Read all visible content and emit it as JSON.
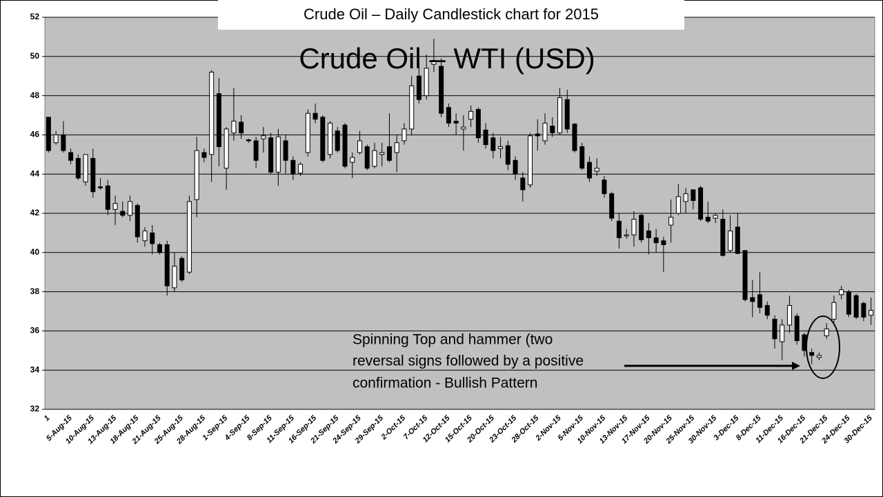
{
  "chart_data": {
    "type": "candlestick",
    "title": "Crude Oil – Daily Candlestick chart for 2015",
    "subtitle": "Crude Oil – WTI (USD)",
    "annotation": [
      "Spinning Top and hammer (two",
      "reversal signs followed by a positive",
      "confirmation -  Bullish Pattern"
    ],
    "categories": [
      "1",
      null,
      null,
      "5-Aug-15",
      null,
      null,
      "10-Aug-15",
      null,
      null,
      "13-Aug-15",
      null,
      null,
      "18-Aug-15",
      null,
      null,
      "21-Aug-15",
      null,
      null,
      "25-Aug-15",
      null,
      null,
      "28-Aug-15",
      null,
      null,
      "1-Sep-15",
      null,
      null,
      "4-Sep-15",
      null,
      null,
      "8-Sep-15",
      null,
      null,
      "11-Sep-15",
      null,
      null,
      "16-Sep-15",
      null,
      null,
      "21-Sep-15",
      null,
      null,
      "24-Sep-15",
      null,
      null,
      "29-Sep-15",
      null,
      null,
      "2-Oct-15",
      null,
      null,
      "7-Oct-15",
      null,
      null,
      "12-Oct-15",
      null,
      null,
      "15-Oct-15",
      null,
      null,
      "20-Oct-15",
      null,
      null,
      "23-Oct-15",
      null,
      null,
      "28-Oct-15",
      null,
      null,
      "2-Nov-15",
      null,
      null,
      "5-Nov-15",
      null,
      null,
      "10-Nov-15",
      null,
      null,
      "13-Nov-15",
      null,
      null,
      "17-Nov-15",
      null,
      null,
      "20-Nov-15",
      null,
      null,
      "25-Nov-15",
      null,
      null,
      "30-Nov-15",
      null,
      null,
      "3-Dec-15",
      null,
      null,
      "8-Dec-15",
      null,
      null,
      "11-Dec-15",
      null,
      null,
      "16-Dec-15",
      null,
      null,
      "21-Dec-15",
      null,
      null,
      "24-Dec-15",
      null,
      null,
      "30-Dec-15"
    ],
    "open": [
      46.9,
      45.6,
      46.0,
      45.1,
      44.8,
      43.6,
      44.8,
      43.35,
      43.4,
      42.2,
      42.1,
      41.9,
      42.4,
      40.6,
      41.0,
      40.4,
      40.4,
      38.2,
      39.7,
      39.0,
      42.7,
      45.1,
      45.0,
      48.1,
      44.3,
      46.1,
      46.65,
      45.75,
      45.7,
      45.8,
      45.85,
      44.1,
      45.7,
      44.7,
      44.05,
      45.1,
      47.1,
      46.9,
      45.0,
      46.2,
      46.5,
      44.6,
      45.1,
      45.4,
      44.4,
      45.0,
      45.4,
      45.1,
      45.7,
      46.3,
      49.0,
      48.0,
      49.6,
      49.5,
      47.4,
      46.7,
      46.3,
      46.8,
      47.3,
      46.25,
      45.85,
      45.3,
      45.45,
      44.7,
      43.8,
      43.45,
      46.05,
      45.7,
      46.45,
      46.1,
      47.8,
      46.55,
      45.4,
      44.6,
      44.15,
      43.7,
      43.0,
      41.6,
      40.85,
      40.9,
      41.9,
      41.1,
      40.75,
      40.6,
      41.4,
      42.0,
      42.6,
      43.2,
      43.3,
      41.8,
      41.75,
      41.7,
      40.1,
      41.3,
      40.1,
      37.7,
      37.85,
      37.3,
      36.6,
      35.45,
      36.3,
      36.75,
      35.8,
      34.9,
      34.65,
      35.75,
      36.6,
      37.85,
      38.0,
      37.8,
      37.4,
      36.8
    ],
    "high": [
      46.9,
      46.2,
      46.7,
      45.3,
      45.0,
      45.0,
      45.3,
      43.8,
      43.7,
      42.9,
      42.6,
      42.9,
      42.5,
      41.3,
      41.4,
      40.5,
      40.6,
      40.0,
      39.8,
      42.9,
      45.9,
      45.3,
      49.3,
      48.9,
      46.4,
      48.4,
      47.0,
      45.8,
      45.9,
      46.4,
      46.1,
      46.3,
      46.0,
      44.9,
      44.6,
      47.3,
      47.6,
      47.0,
      46.7,
      46.4,
      46.6,
      45.1,
      46.2,
      45.5,
      45.6,
      45.6,
      47.1,
      46.0,
      46.6,
      49.0,
      49.6,
      50.1,
      50.9,
      49.9,
      47.6,
      47.1,
      47.0,
      47.5,
      47.4,
      46.6,
      46.1,
      45.9,
      45.7,
      44.9,
      44.1,
      46.1,
      46.8,
      47.1,
      46.9,
      48.4,
      48.3,
      46.6,
      45.6,
      44.9,
      44.8,
      43.9,
      43.1,
      42.0,
      41.2,
      42.1,
      42.0,
      41.5,
      41.2,
      40.8,
      42.7,
      43.5,
      43.3,
      43.2,
      43.4,
      42.6,
      42.0,
      42.2,
      41.9,
      42.0,
      40.1,
      38.6,
      39.0,
      37.5,
      36.8,
      36.6,
      37.8,
      36.9,
      35.9,
      35.1,
      34.9,
      36.4,
      37.8,
      38.3,
      38.1,
      37.9,
      37.5,
      37.7
    ],
    "low": [
      45.1,
      45.5,
      45.1,
      44.5,
      43.7,
      43.4,
      42.8,
      43.2,
      41.9,
      41.4,
      41.8,
      41.6,
      40.5,
      40.3,
      39.9,
      39.9,
      37.8,
      38.0,
      38.5,
      38.9,
      41.8,
      44.6,
      43.6,
      44.4,
      43.2,
      45.7,
      45.8,
      45.6,
      44.3,
      45.1,
      44.0,
      43.4,
      44.0,
      43.7,
      43.9,
      44.9,
      46.6,
      44.6,
      44.8,
      45.1,
      44.3,
      43.8,
      45.0,
      44.2,
      44.3,
      44.4,
      44.6,
      44.1,
      45.5,
      46.0,
      47.6,
      47.8,
      49.2,
      46.9,
      46.4,
      46.0,
      45.2,
      46.4,
      45.6,
      45.3,
      44.8,
      44.8,
      44.2,
      43.7,
      42.6,
      43.3,
      45.2,
      45.5,
      45.9,
      46.0,
      46.1,
      45.1,
      44.2,
      43.6,
      43.9,
      42.8,
      41.6,
      40.2,
      40.7,
      40.3,
      40.5,
      39.9,
      40.0,
      39.0,
      40.5,
      41.9,
      42.0,
      42.2,
      41.6,
      41.5,
      41.5,
      39.8,
      40.0,
      39.9,
      37.5,
      36.7,
      36.9,
      36.6,
      35.1,
      34.5,
      35.9,
      35.3,
      34.7,
      34.3,
      34.5,
      35.6,
      36.4,
      37.6,
      36.7,
      36.6,
      36.5,
      36.3
    ],
    "close": [
      45.2,
      46.0,
      45.2,
      44.7,
      43.8,
      45.0,
      43.1,
      43.3,
      42.2,
      42.5,
      41.9,
      42.6,
      40.8,
      41.1,
      40.45,
      40.0,
      38.3,
      39.3,
      38.6,
      42.6,
      45.2,
      44.85,
      49.2,
      45.4,
      46.3,
      46.7,
      46.1,
      45.7,
      44.7,
      45.95,
      44.1,
      45.9,
      44.7,
      44.0,
      44.5,
      47.1,
      46.8,
      44.7,
      46.6,
      45.2,
      44.4,
      44.85,
      45.7,
      44.3,
      45.2,
      45.1,
      44.7,
      45.6,
      46.3,
      48.5,
      47.8,
      49.4,
      49.8,
      47.1,
      46.6,
      46.6,
      46.4,
      47.2,
      45.85,
      45.5,
      45.2,
      45.4,
      44.5,
      44.0,
      43.2,
      45.95,
      45.95,
      46.6,
      46.1,
      47.9,
      46.3,
      45.2,
      44.3,
      43.8,
      44.3,
      43.0,
      41.75,
      40.75,
      40.9,
      41.7,
      40.65,
      40.75,
      40.5,
      40.4,
      41.8,
      42.85,
      43.0,
      42.65,
      41.7,
      41.6,
      41.9,
      39.85,
      41.1,
      39.95,
      37.6,
      37.5,
      37.2,
      36.8,
      35.6,
      36.3,
      37.3,
      35.5,
      35.0,
      34.75,
      34.75,
      36.1,
      37.45,
      38.1,
      36.85,
      36.7,
      36.7,
      37.05
    ],
    "up_color": "#ffffff",
    "down_color": "#000000",
    "ylim": [
      32,
      52
    ],
    "yticks": [
      32,
      34,
      36,
      38,
      40,
      42,
      44,
      46,
      48,
      50,
      52
    ],
    "grid": true
  }
}
